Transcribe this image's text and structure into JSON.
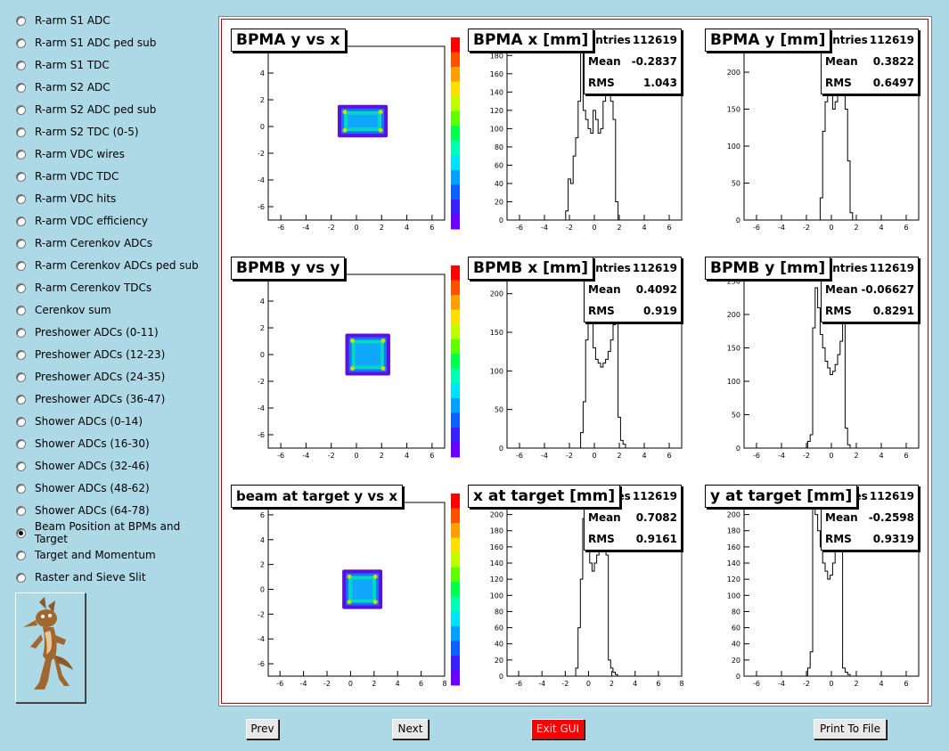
{
  "sidebar": {
    "items": [
      {
        "label": "R-arm S1 ADC",
        "selected": false
      },
      {
        "label": "R-arm S1 ADC ped sub",
        "selected": false
      },
      {
        "label": "R-arm S1 TDC",
        "selected": false
      },
      {
        "label": "R-arm S2 ADC",
        "selected": false
      },
      {
        "label": "R-arm S2 ADC ped sub",
        "selected": false
      },
      {
        "label": "R-arm S2 TDC (0-5)",
        "selected": false
      },
      {
        "label": "R-arm VDC wires",
        "selected": false
      },
      {
        "label": "R-arm VDC TDC",
        "selected": false
      },
      {
        "label": "R-arm VDC hits",
        "selected": false
      },
      {
        "label": "R-arm VDC efficiency",
        "selected": false
      },
      {
        "label": "R-arm Cerenkov ADCs",
        "selected": false
      },
      {
        "label": "R-arm Cerenkov ADCs ped sub",
        "selected": false
      },
      {
        "label": "R-arm Cerenkov TDCs",
        "selected": false
      },
      {
        "label": "Cerenkov sum",
        "selected": false
      },
      {
        "label": "Preshower ADCs (0-11)",
        "selected": false
      },
      {
        "label": "Preshower ADCs (12-23)",
        "selected": false
      },
      {
        "label": "Preshower ADCs (24-35)",
        "selected": false
      },
      {
        "label": "Preshower ADCs (36-47)",
        "selected": false
      },
      {
        "label": "Shower ADCs (0-14)",
        "selected": false
      },
      {
        "label": "Shower ADCs (16-30)",
        "selected": false
      },
      {
        "label": "Shower ADCs (32-46)",
        "selected": false
      },
      {
        "label": "Shower ADCs (48-62)",
        "selected": false
      },
      {
        "label": "Shower ADCs (64-78)",
        "selected": false
      },
      {
        "label": "Beam Position at BPMs and Target",
        "selected": true
      },
      {
        "label": "Target and Momentum",
        "selected": false
      },
      {
        "label": "Raster and Sieve Slit",
        "selected": false
      }
    ]
  },
  "buttons": {
    "prev": "Prev",
    "next": "Next",
    "exit": "Exit GUI",
    "print": "Print To File"
  },
  "colors": {
    "background": "#add8e6",
    "frame_border": "#c00000",
    "exit_button": "#ff0000"
  },
  "stats_labels": {
    "entries": "Entries",
    "mean": "Mean",
    "rms": "RMS"
  },
  "chart_data": [
    {
      "type": "heatmap",
      "title": "BPMA y vs x",
      "x_ticks": [
        -6,
        -4,
        -2,
        0,
        2,
        4,
        6
      ],
      "y_ticks": [
        -6,
        -4,
        -2,
        0,
        2,
        4
      ],
      "xlim": [
        -7,
        7
      ],
      "ylim": [
        -7,
        6
      ],
      "blobs": [
        {
          "cx": 0.5,
          "cy": 0.4,
          "w": 3.4,
          "h": 1.9
        }
      ]
    },
    {
      "type": "bar",
      "title": "BPMA x [mm]",
      "stats": {
        "entries": "112619",
        "mean": "-0.2837",
        "rms": "1.043"
      },
      "x_ticks": [
        -6,
        -4,
        -2,
        0,
        2,
        4,
        6
      ],
      "y_ticks": [
        0,
        20,
        40,
        60,
        80,
        100,
        120,
        140,
        160,
        180
      ],
      "xlim": [
        -7,
        7
      ],
      "ylim": [
        0,
        190
      ],
      "x": [
        -2.4,
        -2.2,
        -2.0,
        -1.8,
        -1.6,
        -1.4,
        -1.2,
        -1.0,
        -0.8,
        -0.6,
        -0.4,
        -0.2,
        0,
        0.2,
        0.4,
        0.6,
        0.8,
        1.0,
        1.2,
        1.4,
        1.6,
        1.8,
        2.0
      ],
      "values": [
        0,
        10,
        45,
        40,
        70,
        90,
        130,
        185,
        120,
        110,
        100,
        95,
        120,
        110,
        95,
        100,
        130,
        165,
        150,
        130,
        110,
        20,
        0
      ]
    },
    {
      "type": "bar",
      "title": "BPMA y [mm]",
      "stats": {
        "entries": "112619",
        "mean": "0.3822",
        "rms": "0.6497"
      },
      "x_ticks": [
        -6,
        -4,
        -2,
        0,
        2,
        4,
        6
      ],
      "y_ticks": [
        0,
        50,
        100,
        150,
        200
      ],
      "xlim": [
        -7,
        7
      ],
      "ylim": [
        0,
        235
      ],
      "x": [
        -1.0,
        -0.8,
        -0.6,
        -0.4,
        -0.2,
        0,
        0.2,
        0.4,
        0.6,
        0.8,
        1.0,
        1.2,
        1.4,
        1.6,
        1.8
      ],
      "values": [
        0,
        30,
        120,
        160,
        190,
        170,
        150,
        160,
        200,
        190,
        180,
        150,
        80,
        10,
        0
      ]
    },
    {
      "type": "heatmap",
      "title": "BPMB y vs y",
      "x_ticks": [
        -6,
        -4,
        -2,
        0,
        2,
        4,
        6
      ],
      "y_ticks": [
        -6,
        -4,
        -2,
        0,
        2,
        4
      ],
      "xlim": [
        -7,
        7
      ],
      "ylim": [
        -7,
        6
      ],
      "blobs": [
        {
          "cx": 0.9,
          "cy": 0.0,
          "w": 3.0,
          "h": 2.6
        }
      ]
    },
    {
      "type": "bar",
      "title": "BPMB x [mm]",
      "stats": {
        "entries": "112619",
        "mean": "0.4092",
        "rms": "0.919"
      },
      "x_ticks": [
        -6,
        -4,
        -2,
        0,
        2,
        4,
        6
      ],
      "y_ticks": [
        0,
        50,
        100,
        150,
        200
      ],
      "xlim": [
        -7,
        7
      ],
      "ylim": [
        0,
        225
      ],
      "x": [
        -1.2,
        -1.0,
        -0.8,
        -0.6,
        -0.4,
        -0.2,
        0,
        0.2,
        0.4,
        0.6,
        0.8,
        1.0,
        1.2,
        1.4,
        1.6,
        1.8,
        2.0,
        2.2,
        2.4,
        2.6
      ],
      "values": [
        0,
        20,
        60,
        140,
        215,
        170,
        130,
        115,
        110,
        105,
        110,
        115,
        125,
        140,
        160,
        190,
        40,
        10,
        5,
        0
      ]
    },
    {
      "type": "bar",
      "title": "BPMB y [mm]",
      "stats": {
        "entries": "112619",
        "mean": "-0.06627",
        "rms": "0.8291"
      },
      "x_ticks": [
        -6,
        -4,
        -2,
        0,
        2,
        4,
        6
      ],
      "y_ticks": [
        0,
        50,
        100,
        150,
        200,
        250
      ],
      "xlim": [
        -7,
        7
      ],
      "ylim": [
        0,
        260
      ],
      "x": [
        -2.0,
        -1.8,
        -1.6,
        -1.4,
        -1.2,
        -1.0,
        -0.8,
        -0.6,
        -0.4,
        -0.2,
        0,
        0.2,
        0.4,
        0.6,
        0.8,
        1.0,
        1.2,
        1.4,
        1.6
      ],
      "values": [
        0,
        10,
        20,
        180,
        240,
        210,
        170,
        150,
        130,
        120,
        110,
        115,
        125,
        140,
        160,
        200,
        30,
        5,
        0
      ]
    },
    {
      "type": "heatmap",
      "title": "beam at target y vs x",
      "x_ticks": [
        -6,
        -4,
        -2,
        0,
        2,
        4,
        6,
        8
      ],
      "y_ticks": [
        -6,
        -4,
        -2,
        0,
        2,
        4,
        6
      ],
      "xlim": [
        -7,
        8
      ],
      "ylim": [
        -7,
        7
      ],
      "blobs": [
        {
          "cx": 1.0,
          "cy": 0.0,
          "w": 2.8,
          "h": 2.6
        }
      ]
    },
    {
      "type": "bar",
      "title": "x at target [mm]",
      "stats": {
        "entries": "112619",
        "mean": "0.7082",
        "rms": "0.9161"
      },
      "x_ticks": [
        -6,
        -4,
        -2,
        0,
        2,
        4,
        6,
        8
      ],
      "y_ticks": [
        0,
        20,
        40,
        60,
        80,
        100,
        120,
        140,
        160,
        180,
        200
      ],
      "xlim": [
        -7,
        8
      ],
      "ylim": [
        0,
        215
      ],
      "x": [
        -1.2,
        -1.0,
        -0.8,
        -0.6,
        -0.4,
        -0.2,
        0,
        0.2,
        0.4,
        0.6,
        0.8,
        1.0,
        1.2,
        1.4,
        1.6,
        1.8,
        2.0,
        2.2,
        2.4,
        2.6
      ],
      "values": [
        0,
        10,
        60,
        120,
        195,
        180,
        160,
        140,
        130,
        140,
        150,
        160,
        190,
        200,
        150,
        20,
        10,
        5,
        2,
        0
      ]
    },
    {
      "type": "bar",
      "title": "y at target [mm]",
      "stats": {
        "entries": "112619",
        "mean": "-0.2598",
        "rms": "0.9319"
      },
      "x_ticks": [
        -6,
        -4,
        -2,
        0,
        2,
        4,
        6
      ],
      "y_ticks": [
        0,
        20,
        40,
        60,
        80,
        100,
        120,
        140,
        160,
        180,
        200
      ],
      "xlim": [
        -7,
        7
      ],
      "ylim": [
        0,
        215
      ],
      "x": [
        -2.0,
        -1.8,
        -1.6,
        -1.4,
        -1.2,
        -1.0,
        -0.8,
        -0.6,
        -0.4,
        -0.2,
        0,
        0.2,
        0.4,
        0.6,
        0.8,
        1.0,
        1.2,
        1.4,
        1.6
      ],
      "values": [
        0,
        10,
        30,
        210,
        200,
        180,
        160,
        140,
        130,
        120,
        125,
        140,
        160,
        190,
        170,
        10,
        5,
        2,
        0
      ]
    }
  ]
}
